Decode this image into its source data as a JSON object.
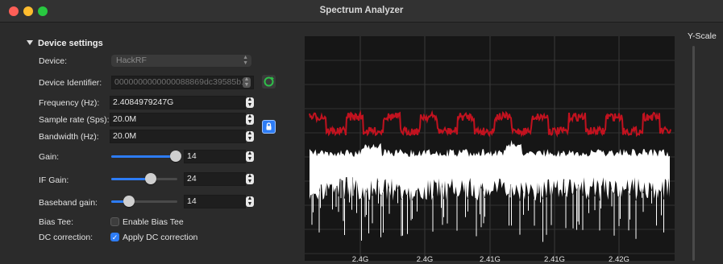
{
  "window": {
    "title": "Spectrum Analyzer"
  },
  "settings": {
    "section_title": "Device settings",
    "device": {
      "label": "Device:",
      "value": "HackRF"
    },
    "identifier": {
      "label": "Device Identifier:",
      "value": "0000000000000088869dc39585b1b"
    },
    "frequency": {
      "label": "Frequency (Hz):",
      "value": "2.4084979247G"
    },
    "sample_rate": {
      "label": "Sample rate (Sps):",
      "value": "20.0M"
    },
    "bandwidth": {
      "label": "Bandwidth (Hz):",
      "value": "20.0M"
    },
    "gain": {
      "label": "Gain:",
      "value": "14",
      "level": 0.98
    },
    "if_gain": {
      "label": "IF Gain:",
      "value": "24",
      "level": 0.6
    },
    "baseband_gain": {
      "label": "Baseband gain:",
      "value": "14",
      "level": 0.27
    },
    "bias_tee": {
      "label": "Bias Tee:",
      "option": "Enable Bias Tee",
      "checked": false
    },
    "dc_correction": {
      "label": "DC correction:",
      "option": "Apply DC correction",
      "checked": true
    }
  },
  "plot": {
    "x_ticks": [
      "2.4G",
      "2.4G",
      "2.41G",
      "2.41G",
      "2.42G"
    ],
    "peak_color": "#c1121f",
    "trace_color": "#ffffff"
  },
  "y_scale": {
    "label": "Y-Scale"
  }
}
